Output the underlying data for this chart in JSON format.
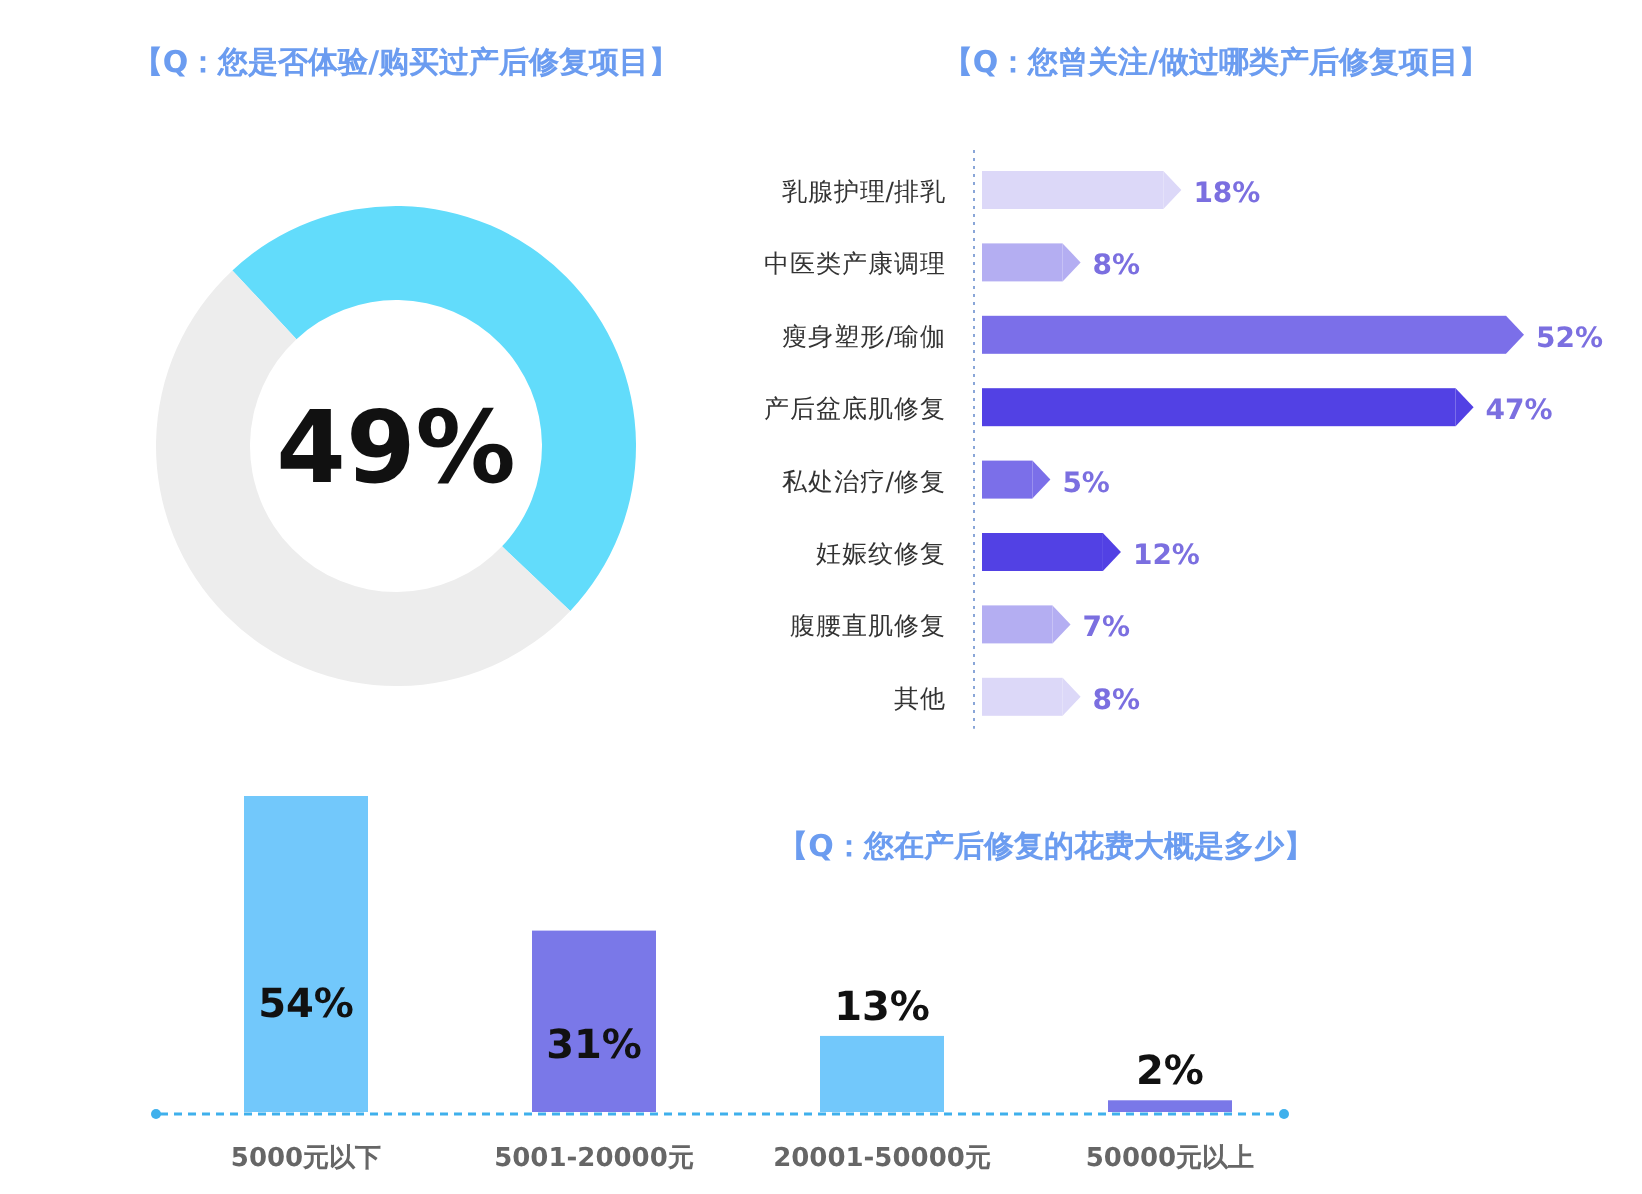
{
  "chart_data": [
    {
      "type": "donut",
      "title": "【Q：您是否体验/购买过产后修复项目】",
      "categories": [
        null,
        null
      ],
      "values": [
        49,
        51
      ],
      "colors": [
        "#62dcfb",
        "#ededed"
      ],
      "annotations": [
        "49%"
      ]
    },
    {
      "type": "bar",
      "orientation": "horizontal",
      "title": "【Q：您曾关注/做过哪类产后修复项目】",
      "categories": [
        "乳腺护理/排乳",
        "中医类产康调理",
        "瘦身塑形/瑜伽",
        "产后盆底肌修复",
        "私处治疗/修复",
        "妊娠纹修复",
        "腹腰直肌修复",
        "其他"
      ],
      "values": [
        18,
        8,
        52,
        47,
        5,
        12,
        7,
        8
      ],
      "colors": [
        "#dcd8f8",
        "#b4aef2",
        "#7b6fe9",
        "#5241e4",
        "#7b6fe9",
        "#5241e4",
        "#b4aef2",
        "#dcd8f8"
      ],
      "value_labels": [
        "18%",
        "8%",
        "52%",
        "47%",
        "5%",
        "12%",
        "7%",
        "8%"
      ]
    },
    {
      "type": "bar",
      "title": "【Q：您在产后修复的花费大概是多少】",
      "categories": [
        "5000元以下",
        "5001-20000元",
        "20001-50000元",
        "50000元以上"
      ],
      "values": [
        54,
        31,
        13,
        2
      ],
      "colors": [
        "#72c8fb",
        "#7a78e8",
        "#72c8fb",
        "#7a78e8"
      ],
      "value_labels": [
        "54%",
        "31%",
        "13%",
        "2%"
      ]
    }
  ]
}
